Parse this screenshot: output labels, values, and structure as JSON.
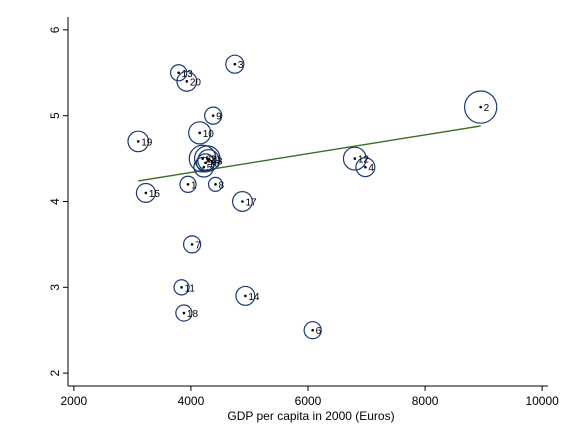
{
  "chart_data": {
    "type": "scatter",
    "title": "",
    "xlabel": "GDP per capita in 2000 (Euros)",
    "ylabel": "",
    "xlim": [
      1900,
      10100
    ],
    "ylim": [
      1.85,
      6.15
    ],
    "xticks": [
      2000,
      4000,
      6000,
      8000,
      10000
    ],
    "yticks": [
      2,
      3,
      4,
      5,
      6
    ],
    "xtick_labels": [
      "2000",
      "4000",
      "6000",
      "8000",
      "10000"
    ],
    "ytick_labels": [
      "2",
      "3",
      "4",
      "5",
      "6"
    ],
    "grid": false,
    "points": [
      {
        "label": "1",
        "x": 3950,
        "y": 4.2,
        "size": 0.8
      },
      {
        "label": "2",
        "x": 8950,
        "y": 5.1,
        "size": 3.2
      },
      {
        "label": "3",
        "x": 4750,
        "y": 5.6,
        "size": 1.0
      },
      {
        "label": "4",
        "x": 6980,
        "y": 4.4,
        "size": 1.1
      },
      {
        "label": "5",
        "x": 4220,
        "y": 4.4,
        "size": 1.2
      },
      {
        "label": "6",
        "x": 6080,
        "y": 2.5,
        "size": 0.9
      },
      {
        "label": "7",
        "x": 4020,
        "y": 3.5,
        "size": 0.9
      },
      {
        "label": "8",
        "x": 4420,
        "y": 4.2,
        "size": 0.6
      },
      {
        "label": "9",
        "x": 4380,
        "y": 5.0,
        "size": 0.9
      },
      {
        "label": "10",
        "x": 4150,
        "y": 4.8,
        "size": 1.5
      },
      {
        "label": "11",
        "x": 3840,
        "y": 3.0,
        "size": 0.7
      },
      {
        "label": "12",
        "x": 6800,
        "y": 4.5,
        "size": 1.6
      },
      {
        "label": "13",
        "x": 3790,
        "y": 5.5,
        "size": 0.8
      },
      {
        "label": "14",
        "x": 4930,
        "y": 2.9,
        "size": 1.1
      },
      {
        "label": "15",
        "x": 3230,
        "y": 4.1,
        "size": 1.1
      },
      {
        "label": "16",
        "x": 4250,
        "y": 4.45,
        "size": 1.0
      },
      {
        "label": "17",
        "x": 4880,
        "y": 4.0,
        "size": 1.2
      },
      {
        "label": "18",
        "x": 3880,
        "y": 2.7,
        "size": 0.8
      },
      {
        "label": "19",
        "x": 3100,
        "y": 4.7,
        "size": 1.3
      },
      {
        "label": "20",
        "x": 3930,
        "y": 5.4,
        "size": 1.2
      },
      {
        "label": "21",
        "x": 4280,
        "y": 4.5,
        "size": 2.0
      },
      {
        "label": "22",
        "x": 4200,
        "y": 4.5,
        "size": 2.2
      },
      {
        "label": "23",
        "x": 4300,
        "y": 4.48,
        "size": 1.4
      }
    ],
    "fit_line": {
      "x": [
        3100,
        8950
      ],
      "y": [
        4.24,
        4.88
      ]
    },
    "colors": {
      "bubble": "#1a3a6e",
      "fit_line": "#3a6b1f",
      "axis": "#000000"
    }
  }
}
